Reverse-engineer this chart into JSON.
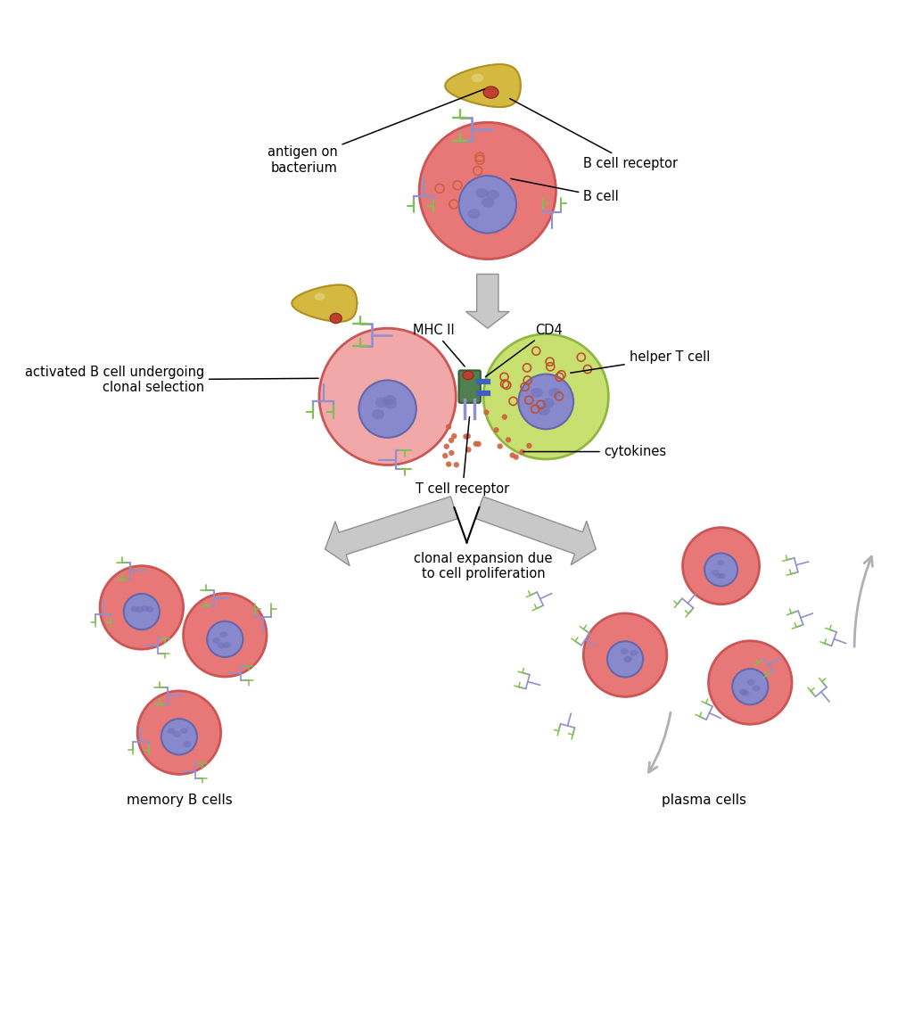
{
  "bg_color": "#ffffff",
  "cell_colors": {
    "b_cell_body": "#e87878",
    "b_cell_outline": "#cc5555",
    "b_cell_activated": "#f0a8a8",
    "b_cell_activated_outline": "#cc5555",
    "nucleus": "#8888cc",
    "nucleus_outline": "#6666aa",
    "helper_t_body": "#c8e070",
    "helper_t_outline": "#90b840",
    "bacterium": "#d4b840",
    "bacterium_outline": "#b09020",
    "antigen": "#c04030",
    "mhc_green": "#508050",
    "cd4_blue": "#4060c0",
    "receptor_stem": "#9090cc",
    "receptor_tips": "#80c050",
    "cytokine_dots": "#d06040",
    "arrow_gray": "#b0b0b0",
    "arrow_face": "#c8c8c8",
    "arrow_edge": "#909090"
  },
  "labels": {
    "antigen_on_bacterium": "antigen on\nbacterium",
    "b_cell_receptor": "B cell receptor",
    "b_cell": "B cell",
    "activated_b_cell": "activated B cell undergoing\nclonal selection",
    "mhc_ii": "MHC II",
    "cd4": "CD4",
    "helper_t_cell": "helper T cell",
    "cytokines": "cytokines",
    "t_cell_receptor": "T cell receptor",
    "clonal_expansion": "clonal expansion due\nto cell proliferation",
    "memory_b_cells": "memory B cells",
    "plasma_cells": "plasma cells"
  },
  "font_size": 10.5
}
